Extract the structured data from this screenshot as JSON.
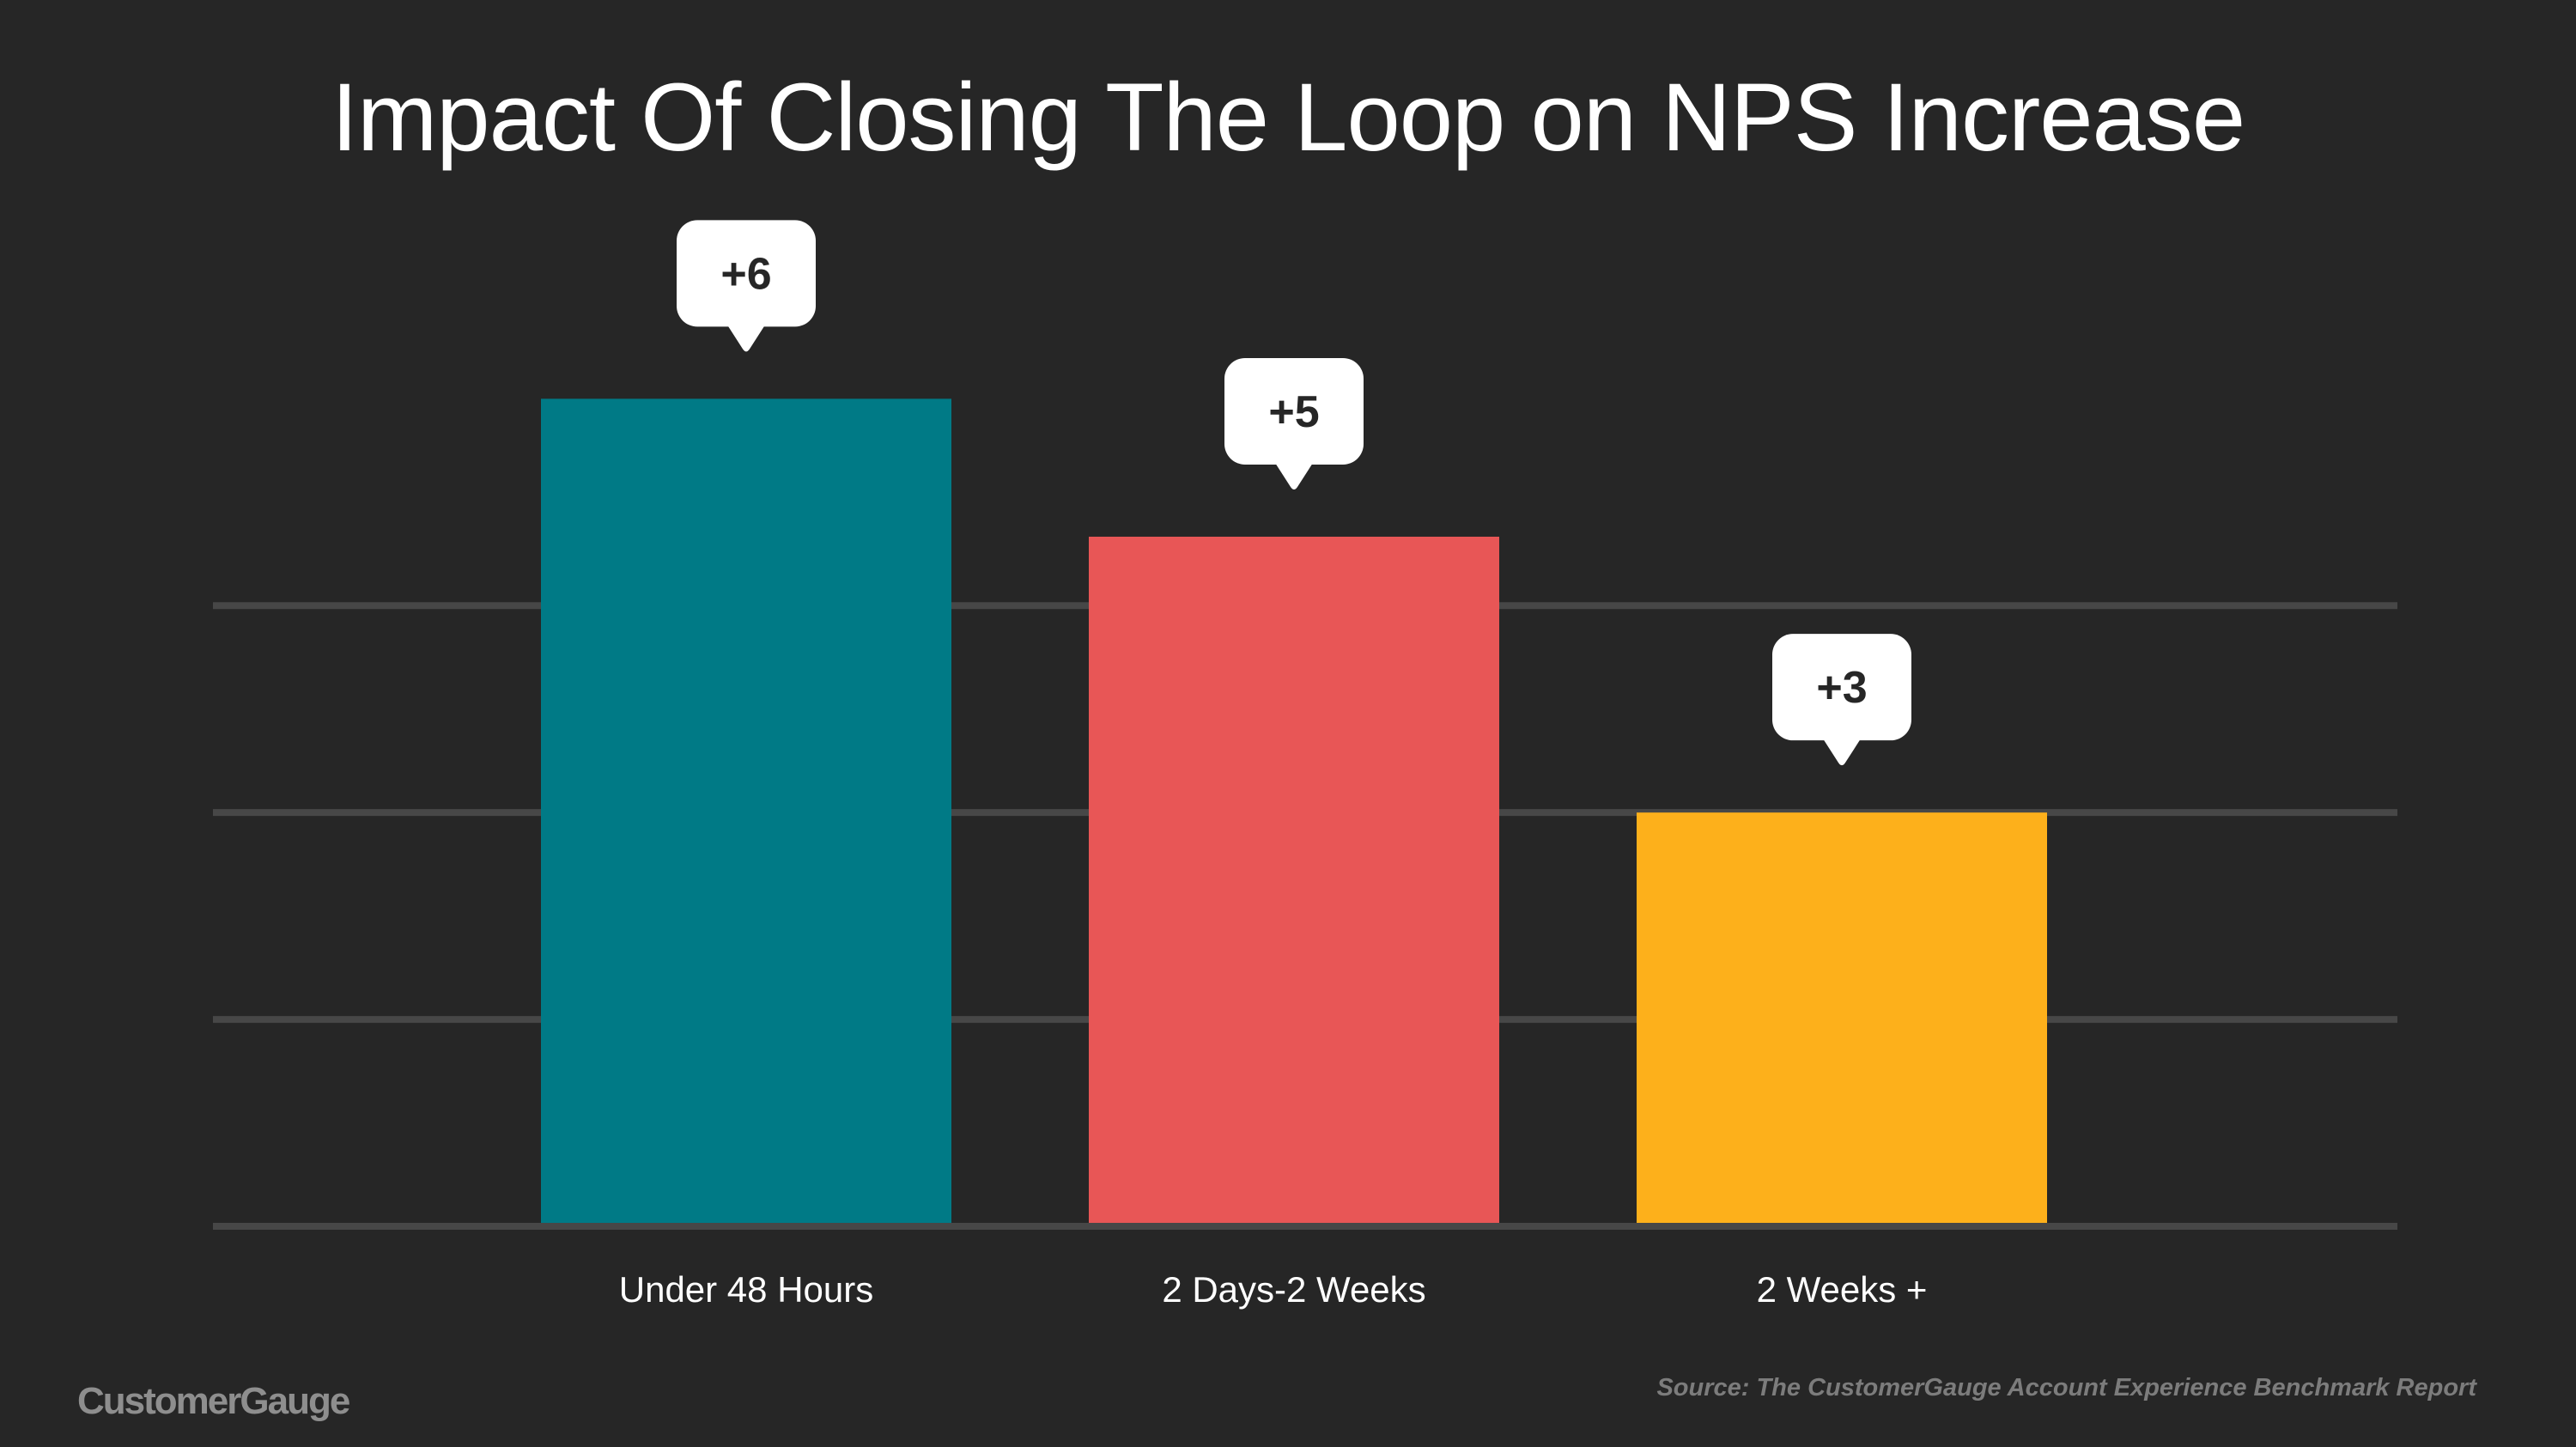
{
  "title": "Impact Of Closing The Loop on NPS Increase",
  "brand": "CustomerGauge",
  "source": "Source: The CustomerGauge Account Experience Benchmark Report",
  "chart_data": {
    "type": "bar",
    "title": "Impact Of Closing The Loop on NPS Increase",
    "categories": [
      "Under 48 Hours",
      "2 Days-2 Weeks",
      "2 Weeks +"
    ],
    "values": [
      6,
      5,
      3
    ],
    "data_labels": [
      "+6",
      "+5",
      "+3"
    ],
    "colors": [
      "#007a86",
      "#e85656",
      "#fdb01b"
    ],
    "ylim": [
      0,
      6.6
    ],
    "gridlines": [
      0,
      1.5,
      3,
      4.5
    ],
    "grid": true,
    "xlabel": "",
    "ylabel": "",
    "legend": "none"
  }
}
